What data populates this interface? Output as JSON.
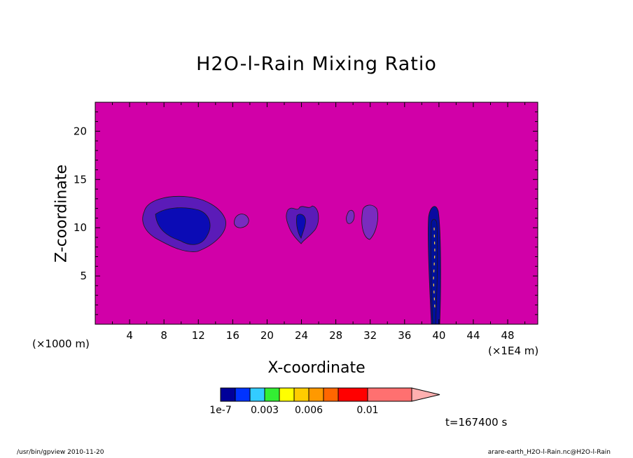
{
  "chart_data": {
    "type": "contour",
    "title": "H2O-l-Rain Mixing Ratio",
    "xlabel": "X-coordinate",
    "ylabel": "Z-coordinate",
    "x_unit_left": "(×1000 m)",
    "x_unit_right": "(×1E4 m)",
    "xlim": [
      0,
      51.5
    ],
    "ylim": [
      0,
      23
    ],
    "x_ticks": [
      4,
      8,
      12,
      16,
      20,
      24,
      28,
      32,
      36,
      40,
      44,
      48
    ],
    "y_ticks": [
      5,
      10,
      15,
      20
    ],
    "background_color": "#d100a8",
    "features": [
      {
        "name": "cloud-cluster-1",
        "x_center": 10.5,
        "z_center": 10,
        "color": "#5b1bb8"
      },
      {
        "name": "cloud-small-2",
        "x_center": 17,
        "z_center": 10.6,
        "color": "#7a2bbf"
      },
      {
        "name": "cloud-cluster-3",
        "x_center": 23.8,
        "z_center": 10.5,
        "color": "#5b1bb8"
      },
      {
        "name": "cloud-small-4",
        "x_center": 29.5,
        "z_center": 11,
        "color": "#7a2bbf"
      },
      {
        "name": "cloud-small-5",
        "x_center": 31.8,
        "z_center": 10.3,
        "color": "#7a2bbf"
      },
      {
        "name": "rain-column",
        "x_center": 39.2,
        "z_center": 6,
        "color": "#0a0aa0"
      }
    ],
    "colorbar": {
      "colors": [
        "#000099",
        "#0033ff",
        "#33ccff",
        "#33ee33",
        "#ffff00",
        "#ffcc00",
        "#ff9900",
        "#ff6600",
        "#ff0000",
        "#ff7070",
        "#ffb0b0"
      ],
      "labels": [
        "1e-7",
        "0.003",
        "0.006",
        "0.01"
      ]
    }
  },
  "time_label": "t=167400 s",
  "footer_left": "/usr/bin/gpview   2010-11-20",
  "footer_right": "arare-earth_H2O-l-Rain.nc@H2O-l-Rain"
}
